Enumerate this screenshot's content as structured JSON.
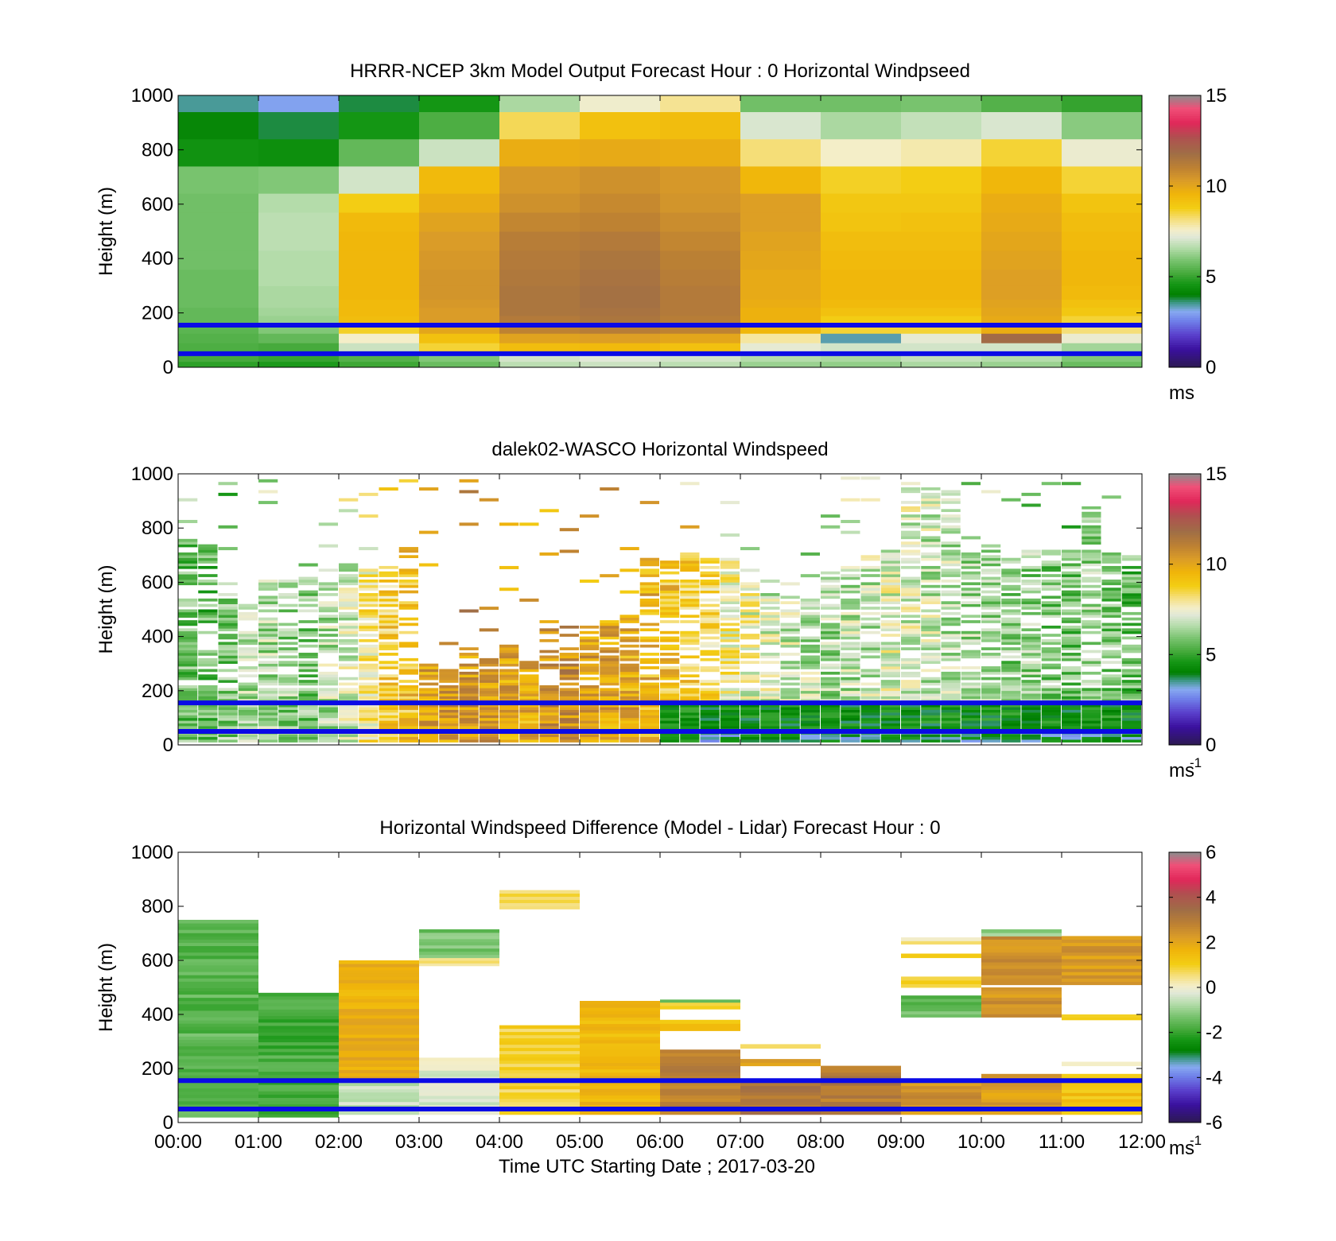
{
  "figure": {
    "xlabel": "Time UTC  Starting Date ; 2017-03-20",
    "x_ticks": [
      "00:00",
      "01:00",
      "02:00",
      "03:00",
      "04:00",
      "05:00",
      "06:00",
      "07:00",
      "08:00",
      "09:00",
      "10:00",
      "11:00",
      "12:00"
    ]
  },
  "chart_data": [
    {
      "type": "heatmap",
      "title": "HRRR-NCEP 3km Model Output   Forecast Hour : 0 Horizontal Windpseed",
      "ylabel": "Height (m)",
      "y_ticks": [
        "0",
        "200",
        "400",
        "600",
        "800",
        "1000"
      ],
      "ylim": [
        0,
        1000
      ],
      "x_range_hours": [
        0,
        12
      ],
      "colorbar": {
        "ticks": [
          "0",
          "5",
          "10",
          "15"
        ],
        "range": [
          0,
          15
        ],
        "unit": "ms",
        "unit_sup": ""
      },
      "reference_lines_m": [
        50,
        155
      ],
      "line_color": "#0a0ae6",
      "levels_m": [
        20,
        55,
        90,
        125,
        160,
        190,
        220,
        250,
        300,
        360,
        430,
        500,
        570,
        640,
        740,
        840,
        940,
        1000
      ],
      "columns": [
        {
          "x": [
            0,
            1
          ],
          "speeds": [
            5.2,
            5.3,
            5.4,
            5.5,
            5.6,
            5.6,
            5.7,
            5.7,
            5.7,
            5.8,
            5.8,
            5.8,
            5.8,
            5.9,
            4.5,
            4.2,
            3.5
          ]
        },
        {
          "x": [
            1,
            2
          ],
          "speeds": [
            5.0,
            5.2,
            5.6,
            6.0,
            6.3,
            6.4,
            6.5,
            6.5,
            6.6,
            6.6,
            6.7,
            6.7,
            6.6,
            6.0,
            4.4,
            3.8,
            3.0
          ]
        },
        {
          "x": [
            2,
            3
          ],
          "speeds": [
            5.4,
            6.9,
            7.6,
            8.7,
            9.3,
            9.4,
            9.4,
            9.5,
            9.5,
            9.5,
            9.5,
            9.4,
            8.8,
            7.0,
            5.6,
            4.6,
            3.8
          ]
        },
        {
          "x": [
            3,
            4
          ],
          "speeds": [
            6.0,
            8.6,
            9.2,
            10.0,
            10.3,
            10.3,
            10.4,
            10.5,
            10.5,
            10.4,
            10.3,
            10.1,
            9.8,
            9.4,
            6.9,
            5.3,
            4.6
          ]
        },
        {
          "x": [
            4,
            5
          ],
          "speeds": [
            7.0,
            9.3,
            10.1,
            11.0,
            11.3,
            11.5,
            11.5,
            11.5,
            11.4,
            11.3,
            11.2,
            10.9,
            10.6,
            10.4,
            9.8,
            8.4,
            6.5
          ]
        },
        {
          "x": [
            5,
            6
          ],
          "speeds": [
            7.2,
            9.4,
            10.2,
            11.2,
            11.5,
            11.6,
            11.7,
            11.7,
            11.6,
            11.5,
            11.3,
            11.0,
            10.8,
            10.6,
            9.9,
            9.2,
            7.5
          ]
        },
        {
          "x": [
            6,
            7
          ],
          "speeds": [
            7.0,
            9.2,
            10.0,
            11.0,
            11.2,
            11.3,
            11.3,
            11.3,
            11.2,
            11.1,
            10.9,
            10.7,
            10.5,
            10.4,
            9.8,
            9.3,
            8.0
          ]
        },
        {
          "x": [
            7,
            8
          ],
          "speeds": [
            6.6,
            7.3,
            7.9,
            9.5,
            9.7,
            9.7,
            9.8,
            9.9,
            9.9,
            10.0,
            10.1,
            10.2,
            10.2,
            9.5,
            8.2,
            7.1,
            5.8
          ]
        },
        {
          "x": [
            8,
            9
          ],
          "speeds": [
            6.5,
            7.0,
            3.4,
            8.6,
            8.8,
            9.2,
            9.4,
            9.5,
            9.5,
            9.4,
            9.3,
            9.1,
            9.0,
            8.7,
            7.6,
            6.5,
            5.8
          ]
        },
        {
          "x": [
            9,
            10
          ],
          "speeds": [
            6.8,
            7.0,
            7.3,
            8.6,
            8.8,
            9.2,
            9.4,
            9.5,
            9.5,
            9.4,
            9.3,
            9.2,
            9.0,
            8.8,
            7.8,
            6.8,
            5.9
          ]
        },
        {
          "x": [
            10,
            11
          ],
          "speeds": [
            6.6,
            7.0,
            11.9,
            9.8,
            9.9,
            10.0,
            10.1,
            10.2,
            10.2,
            10.1,
            10.0,
            9.9,
            9.8,
            9.5,
            8.6,
            7.1,
            5.4
          ]
        },
        {
          "x": [
            11,
            12
          ],
          "speeds": [
            6.0,
            6.4,
            7.4,
            8.2,
            8.6,
            9.0,
            9.2,
            9.4,
            9.5,
            9.5,
            9.4,
            9.3,
            9.1,
            8.6,
            7.4,
            6.1,
            5.0
          ]
        }
      ]
    },
    {
      "type": "heatmap",
      "title": "dalek02-WASCO  Horizontal Windspeed",
      "ylabel": "Height (m)",
      "y_ticks": [
        "0",
        "200",
        "400",
        "600",
        "800",
        "1000"
      ],
      "ylim": [
        0,
        1000
      ],
      "x_range_hours": [
        0,
        12
      ],
      "colorbar": {
        "ticks": [
          "0",
          "5",
          "10",
          "15"
        ],
        "range": [
          0,
          15
        ],
        "unit": "ms",
        "unit_sup": "-1"
      },
      "reference_lines_m": [
        50,
        155
      ],
      "line_color": "#0a0ae6",
      "bin_height_m": 10,
      "columns": [
        {
          "x": [
            0.0,
            0.25
          ],
          "top_m": 780,
          "base": 5.8
        },
        {
          "x": [
            0.25,
            0.5
          ],
          "top_m": 740,
          "base": 5.4
        },
        {
          "x": [
            0.5,
            0.75
          ],
          "top_m": 600,
          "base": 6.0
        },
        {
          "x": [
            0.75,
            1.0
          ],
          "top_m": 520,
          "base": 6.6
        },
        {
          "x": [
            1.0,
            1.25
          ],
          "top_m": 610,
          "base": 6.5
        },
        {
          "x": [
            1.25,
            1.5
          ],
          "top_m": 610,
          "base": 6.2
        },
        {
          "x": [
            1.5,
            1.75
          ],
          "top_m": 620,
          "base": 6.0
        },
        {
          "x": [
            1.75,
            2.0
          ],
          "top_m": 650,
          "base": 6.6
        },
        {
          "x": [
            2.0,
            2.25
          ],
          "top_m": 660,
          "base": 7.0
        },
        {
          "x": [
            2.25,
            2.5
          ],
          "top_m": 640,
          "base": 8.0
        },
        {
          "x": [
            2.5,
            2.75
          ],
          "top_m": 660,
          "base": 8.8
        },
        {
          "x": [
            2.75,
            3.0
          ],
          "top_m": 730,
          "base": 9.2
        },
        {
          "x": [
            3.0,
            3.25
          ],
          "top_m": 300,
          "base": 10.0
        },
        {
          "x": [
            3.25,
            3.5
          ],
          "top_m": 290,
          "base": 10.2
        },
        {
          "x": [
            3.5,
            3.75
          ],
          "top_m": 370,
          "base": 10.3
        },
        {
          "x": [
            3.75,
            4.0
          ],
          "top_m": 340,
          "base": 10.2
        },
        {
          "x": [
            4.0,
            4.25
          ],
          "top_m": 370,
          "base": 10.0
        },
        {
          "x": [
            4.25,
            4.5
          ],
          "top_m": 330,
          "base": 9.8
        },
        {
          "x": [
            4.5,
            4.75
          ],
          "top_m": 460,
          "base": 10.4
        },
        {
          "x": [
            4.75,
            5.0
          ],
          "top_m": 470,
          "base": 10.6
        },
        {
          "x": [
            5.0,
            5.25
          ],
          "top_m": 440,
          "base": 10.2
        },
        {
          "x": [
            5.25,
            5.5
          ],
          "top_m": 460,
          "base": 10.0
        },
        {
          "x": [
            5.5,
            5.75
          ],
          "top_m": 480,
          "base": 9.8
        },
        {
          "x": [
            5.75,
            6.0
          ],
          "top_m": 690,
          "base": 9.6
        },
        {
          "x": [
            6.0,
            6.25
          ],
          "top_m": 720,
          "base": 9.2
        },
        {
          "x": [
            6.25,
            6.5
          ],
          "top_m": 720,
          "base": 8.8
        },
        {
          "x": [
            6.5,
            6.75
          ],
          "top_m": 700,
          "base": 8.4
        },
        {
          "x": [
            6.75,
            7.0
          ],
          "top_m": 690,
          "base": 7.8
        },
        {
          "x": [
            7.0,
            7.25
          ],
          "top_m": 600,
          "base": 7.4
        },
        {
          "x": [
            7.25,
            7.5
          ],
          "top_m": 560,
          "base": 7.0
        },
        {
          "x": [
            7.5,
            7.75
          ],
          "top_m": 550,
          "base": 6.8
        },
        {
          "x": [
            7.75,
            8.0
          ],
          "top_m": 540,
          "base": 6.6
        },
        {
          "x": [
            8.0,
            8.25
          ],
          "top_m": 640,
          "base": 6.4
        },
        {
          "x": [
            8.25,
            8.5
          ],
          "top_m": 660,
          "base": 6.6
        },
        {
          "x": [
            8.5,
            8.75
          ],
          "top_m": 700,
          "base": 6.8
        },
        {
          "x": [
            8.75,
            9.0
          ],
          "top_m": 720,
          "base": 7.2
        },
        {
          "x": [
            9.0,
            9.25
          ],
          "top_m": 960,
          "base": 7.0
        },
        {
          "x": [
            9.25,
            9.5
          ],
          "top_m": 950,
          "base": 6.8
        },
        {
          "x": [
            9.5,
            9.75
          ],
          "top_m": 940,
          "base": 6.6
        },
        {
          "x": [
            9.75,
            10.0
          ],
          "top_m": 720,
          "base": 6.4
        },
        {
          "x": [
            10.0,
            10.25
          ],
          "top_m": 730,
          "base": 6.2
        },
        {
          "x": [
            10.25,
            10.5
          ],
          "top_m": 700,
          "base": 6.0
        },
        {
          "x": [
            10.5,
            10.75
          ],
          "top_m": 720,
          "base": 6.2
        },
        {
          "x": [
            10.75,
            11.0
          ],
          "top_m": 720,
          "base": 6.0
        },
        {
          "x": [
            11.0,
            11.25
          ],
          "top_m": 720,
          "base": 5.8
        },
        {
          "x": [
            11.25,
            11.5
          ],
          "top_m": 880,
          "base": 6.2
        },
        {
          "x": [
            11.5,
            11.75
          ],
          "top_m": 710,
          "base": 6.0
        },
        {
          "x": [
            11.75,
            12.0
          ],
          "top_m": 700,
          "base": 5.6
        }
      ]
    },
    {
      "type": "heatmap",
      "title": "Horizontal Windspeed Difference (Model - Lidar) Forecast Hour : 0",
      "ylabel": "Height (m)",
      "y_ticks": [
        "0",
        "200",
        "400",
        "600",
        "800",
        "1000"
      ],
      "ylim": [
        0,
        1000
      ],
      "x_range_hours": [
        0,
        12
      ],
      "colorbar": {
        "ticks": [
          "-6",
          "-4",
          "-2",
          "0",
          "2",
          "4",
          "6"
        ],
        "range": [
          -6,
          6
        ],
        "unit": "ms",
        "unit_sup": "-1"
      },
      "reference_lines_m": [
        50,
        155
      ],
      "line_color": "#0a0ae6",
      "blocks": [
        {
          "x": [
            0,
            1
          ],
          "y": [
            20,
            750
          ],
          "diff": -1.6
        },
        {
          "x": [
            1,
            2
          ],
          "y": [
            20,
            480
          ],
          "diff": -1.8
        },
        {
          "x": [
            2,
            3
          ],
          "y": [
            30,
            160
          ],
          "diff": -0.6
        },
        {
          "x": [
            2,
            3
          ],
          "y": [
            160,
            600
          ],
          "diff": 1.8
        },
        {
          "x": [
            3,
            4
          ],
          "y": [
            30,
            240
          ],
          "diff": -0.2
        },
        {
          "x": [
            3,
            4
          ],
          "y": [
            580,
            610
          ],
          "diff": 0.3
        },
        {
          "x": [
            3,
            4
          ],
          "y": [
            610,
            715
          ],
          "diff": -1.3
        },
        {
          "x": [
            4,
            5
          ],
          "y": [
            30,
            360
          ],
          "diff": 0.9
        },
        {
          "x": [
            4,
            5
          ],
          "y": [
            790,
            860
          ],
          "diff": 0.7
        },
        {
          "x": [
            5,
            6
          ],
          "y": [
            30,
            450
          ],
          "diff": 1.6
        },
        {
          "x": [
            6,
            7
          ],
          "y": [
            30,
            270
          ],
          "diff": 2.8
        },
        {
          "x": [
            6,
            7
          ],
          "y": [
            340,
            380
          ],
          "diff": 1.5
        },
        {
          "x": [
            6,
            7
          ],
          "y": [
            420,
            445
          ],
          "diff": 1.2
        },
        {
          "x": [
            6,
            7
          ],
          "y": [
            445,
            455
          ],
          "diff": -1.2
        },
        {
          "x": [
            7,
            8
          ],
          "y": [
            30,
            160
          ],
          "diff": 3.2
        },
        {
          "x": [
            7,
            8
          ],
          "y": [
            210,
            235
          ],
          "diff": 2.0
        },
        {
          "x": [
            7,
            8
          ],
          "y": [
            275,
            290
          ],
          "diff": 1.0
        },
        {
          "x": [
            8,
            9
          ],
          "y": [
            30,
            210
          ],
          "diff": 3.0
        },
        {
          "x": [
            9,
            10
          ],
          "y": [
            30,
            160
          ],
          "diff": 2.4
        },
        {
          "x": [
            9,
            10
          ],
          "y": [
            390,
            470
          ],
          "diff": -1.5
        },
        {
          "x": [
            9,
            10
          ],
          "y": [
            500,
            540
          ],
          "diff": 1.0
        },
        {
          "x": [
            9,
            10
          ],
          "y": [
            610,
            625
          ],
          "diff": 1.2
        },
        {
          "x": [
            9,
            10
          ],
          "y": [
            660,
            685
          ],
          "diff": 0.3
        },
        {
          "x": [
            10,
            11
          ],
          "y": [
            30,
            180
          ],
          "diff": 2.2
        },
        {
          "x": [
            10,
            11
          ],
          "y": [
            390,
            500
          ],
          "diff": 2.4
        },
        {
          "x": [
            10,
            11
          ],
          "y": [
            510,
            690
          ],
          "diff": 2.5
        },
        {
          "x": [
            10,
            11
          ],
          "y": [
            690,
            715
          ],
          "diff": -1.0
        },
        {
          "x": [
            11,
            12
          ],
          "y": [
            30,
            180
          ],
          "diff": 1.3
        },
        {
          "x": [
            11,
            12
          ],
          "y": [
            380,
            400
          ],
          "diff": 1.2
        },
        {
          "x": [
            11,
            12
          ],
          "y": [
            510,
            690
          ],
          "diff": 2.3
        },
        {
          "x": [
            11,
            12
          ],
          "y": [
            210,
            225
          ],
          "diff": 0.4
        }
      ]
    }
  ]
}
